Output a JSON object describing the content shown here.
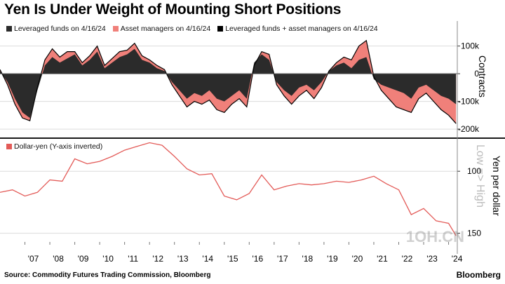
{
  "title": "Yen Is Under Weight of Mounting Short Positions",
  "colors": {
    "asset": "#f0807a",
    "leveraged": "#2b2b2b",
    "combined": "#000000",
    "dollar_yen": "#e35b58",
    "grid": "#dcdcdc",
    "divider": "#1a1a1a"
  },
  "chart_data": [
    {
      "type": "area",
      "ylabel": "Contracts",
      "yticks": [
        100000,
        0,
        -100000,
        -200000
      ],
      "ytick_labels": [
        "100k",
        "0",
        "-100k",
        "-200k"
      ],
      "ylim": [
        -215000,
        165000
      ],
      "legend": [
        {
          "label": "Leveraged funds on 4/16/24",
          "color": "#2b2b2b"
        },
        {
          "label": "Asset managers on 4/16/24",
          "color": "#f0807a"
        },
        {
          "label": "Leveraged funds + asset managers on 4/16/24",
          "color": "#000000"
        }
      ],
      "x": [
        2006.0,
        2006.3,
        2006.6,
        2006.9,
        2007.2,
        2007.5,
        2007.8,
        2008.1,
        2008.4,
        2008.7,
        2009.0,
        2009.3,
        2009.6,
        2009.9,
        2010.2,
        2010.5,
        2010.8,
        2011.1,
        2011.4,
        2011.7,
        2012.0,
        2012.3,
        2012.6,
        2012.9,
        2013.2,
        2013.5,
        2013.8,
        2014.1,
        2014.4,
        2014.7,
        2015.0,
        2015.3,
        2015.6,
        2015.9,
        2016.2,
        2016.5,
        2016.8,
        2017.1,
        2017.4,
        2017.7,
        2018.0,
        2018.3,
        2018.6,
        2018.9,
        2019.2,
        2019.5,
        2019.8,
        2020.1,
        2020.4,
        2020.7,
        2021.0,
        2021.3,
        2021.6,
        2021.9,
        2022.2,
        2022.5,
        2022.8,
        2023.1,
        2023.4,
        2023.7,
        2024.0,
        2024.3
      ],
      "series": [
        {
          "name": "Leveraged funds",
          "color": "#2b2b2b",
          "values": [
            10000,
            -30000,
            -90000,
            -140000,
            -160000,
            -60000,
            30000,
            60000,
            40000,
            55000,
            70000,
            30000,
            50000,
            80000,
            20000,
            40000,
            60000,
            70000,
            90000,
            50000,
            40000,
            20000,
            10000,
            -30000,
            -60000,
            -90000,
            -70000,
            -80000,
            -60000,
            -90000,
            -100000,
            -80000,
            -60000,
            -90000,
            40000,
            70000,
            50000,
            -30000,
            -60000,
            -80000,
            -50000,
            -40000,
            -60000,
            -30000,
            10000,
            30000,
            40000,
            20000,
            50000,
            60000,
            -20000,
            -40000,
            -50000,
            -60000,
            -70000,
            -90000,
            -50000,
            -40000,
            -60000,
            -80000,
            -90000,
            -110000
          ]
        },
        {
          "name": "Asset managers",
          "color": "#f0807a",
          "values": [
            5000,
            -10000,
            -20000,
            -20000,
            -10000,
            10000,
            20000,
            30000,
            20000,
            25000,
            10000,
            10000,
            15000,
            20000,
            10000,
            15000,
            20000,
            15000,
            20000,
            15000,
            10000,
            10000,
            5000,
            -10000,
            -20000,
            -30000,
            -30000,
            -30000,
            -35000,
            -40000,
            -40000,
            -30000,
            -30000,
            -30000,
            -10000,
            10000,
            20000,
            -10000,
            -20000,
            -30000,
            -30000,
            -20000,
            -30000,
            -20000,
            0,
            10000,
            20000,
            30000,
            50000,
            60000,
            10000,
            -20000,
            -40000,
            -60000,
            -60000,
            -50000,
            -40000,
            -30000,
            -40000,
            -50000,
            -60000,
            -70000
          ]
        },
        {
          "name": "Leveraged funds + asset managers",
          "color": "#000000",
          "values": [
            15000,
            -40000,
            -110000,
            -160000,
            -170000,
            -50000,
            50000,
            90000,
            60000,
            80000,
            80000,
            40000,
            65000,
            100000,
            30000,
            55000,
            80000,
            85000,
            110000,
            65000,
            50000,
            30000,
            15000,
            -40000,
            -80000,
            -120000,
            -100000,
            -110000,
            -95000,
            -130000,
            -140000,
            -110000,
            -90000,
            -120000,
            30000,
            80000,
            70000,
            -40000,
            -80000,
            -110000,
            -80000,
            -60000,
            -90000,
            -50000,
            10000,
            40000,
            60000,
            50000,
            100000,
            120000,
            -10000,
            -60000,
            -90000,
            -120000,
            -130000,
            -140000,
            -90000,
            -70000,
            -100000,
            -130000,
            -150000,
            -180000
          ]
        }
      ]
    },
    {
      "type": "line",
      "ylabel": "Yen per dollar",
      "yticks": [
        100,
        150
      ],
      "ytick_labels": [
        "100",
        "150"
      ],
      "ylim": [
        157,
        75
      ],
      "inverted": true,
      "axis_annotation": "Low => High",
      "legend": [
        {
          "label": "Dollar-yen (Y-axis inverted)",
          "color": "#e35b58"
        }
      ],
      "x": [
        2006.0,
        2006.5,
        2007.0,
        2007.5,
        2008.0,
        2008.5,
        2009.0,
        2009.5,
        2010.0,
        2010.5,
        2011.0,
        2011.5,
        2012.0,
        2012.5,
        2013.0,
        2013.5,
        2014.0,
        2014.5,
        2015.0,
        2015.5,
        2016.0,
        2016.5,
        2017.0,
        2017.5,
        2018.0,
        2018.5,
        2019.0,
        2019.5,
        2020.0,
        2020.5,
        2021.0,
        2021.5,
        2022.0,
        2022.5,
        2023.0,
        2023.5,
        2024.0,
        2024.3
      ],
      "series": [
        {
          "name": "Dollar-yen",
          "color": "#e35b58",
          "values": [
            117,
            115,
            120,
            117,
            107,
            108,
            90,
            94,
            92,
            88,
            83,
            80,
            77,
            79,
            88,
            98,
            103,
            102,
            120,
            123,
            118,
            103,
            115,
            112,
            110,
            111,
            110,
            108,
            109,
            107,
            104,
            110,
            115,
            135,
            130,
            140,
            142,
            152
          ]
        }
      ]
    }
  ],
  "x_axis": {
    "ticks": [
      2007,
      2008,
      2009,
      2010,
      2011,
      2012,
      2013,
      2014,
      2015,
      2016,
      2017,
      2018,
      2019,
      2020,
      2021,
      2022,
      2023,
      2024
    ],
    "labels": [
      "'07",
      "'08",
      "'09",
      "'10",
      "'11",
      "'12",
      "'13",
      "'14",
      "'15",
      "'16",
      "'17",
      "'18",
      "'19",
      "'20",
      "'21",
      "'22",
      "'23",
      "'24"
    ],
    "xlim": [
      2006.0,
      2024.35
    ]
  },
  "source": "Source: Commodity Futures Trading Commission, Bloomberg",
  "brand": "Bloomberg",
  "watermark": "1OH.CN"
}
